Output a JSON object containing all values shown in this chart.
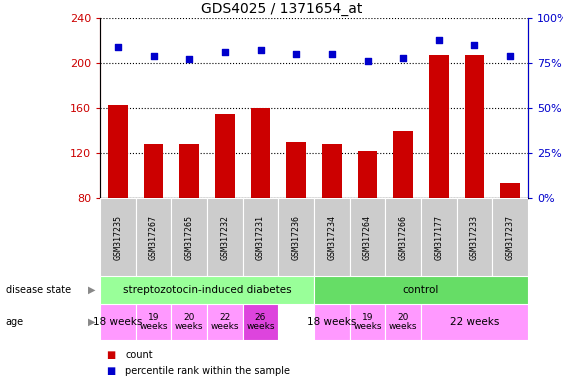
{
  "title": "GDS4025 / 1371654_at",
  "samples": [
    "GSM317235",
    "GSM317267",
    "GSM317265",
    "GSM317232",
    "GSM317231",
    "GSM317236",
    "GSM317234",
    "GSM317264",
    "GSM317266",
    "GSM317177",
    "GSM317233",
    "GSM317237"
  ],
  "bar_values": [
    163,
    128,
    128,
    155,
    160,
    130,
    128,
    122,
    140,
    207,
    207,
    93
  ],
  "percentile_values": [
    84,
    79,
    77,
    81,
    82,
    80,
    80,
    76,
    78,
    88,
    85,
    79
  ],
  "ylim_left": [
    80,
    240
  ],
  "ylim_right": [
    0,
    100
  ],
  "yticks_left": [
    80,
    120,
    160,
    200,
    240
  ],
  "yticks_right": [
    0,
    25,
    50,
    75,
    100
  ],
  "bar_color": "#cc0000",
  "dot_color": "#0000cc",
  "disease_state_groups": [
    {
      "label": "streptozotocin-induced diabetes",
      "start": 0,
      "end": 6,
      "color": "#99ff99"
    },
    {
      "label": "control",
      "start": 6,
      "end": 12,
      "color": "#66dd66"
    }
  ],
  "age_groups": [
    {
      "label": "18 weeks",
      "start": 0,
      "end": 1,
      "color": "#ff99ff",
      "fontsize": 7.5
    },
    {
      "label": "19\nweeks",
      "start": 1,
      "end": 2,
      "color": "#ff99ff",
      "fontsize": 6.5
    },
    {
      "label": "20\nweeks",
      "start": 2,
      "end": 3,
      "color": "#ff99ff",
      "fontsize": 6.5
    },
    {
      "label": "22\nweeks",
      "start": 3,
      "end": 4,
      "color": "#ff99ff",
      "fontsize": 6.5
    },
    {
      "label": "26\nweeks",
      "start": 4,
      "end": 5,
      "color": "#dd44dd",
      "fontsize": 6.5
    },
    {
      "label": "18 weeks",
      "start": 6,
      "end": 7,
      "color": "#ff99ff",
      "fontsize": 7.5
    },
    {
      "label": "19\nweeks",
      "start": 7,
      "end": 8,
      "color": "#ff99ff",
      "fontsize": 6.5
    },
    {
      "label": "20\nweeks",
      "start": 8,
      "end": 9,
      "color": "#ff99ff",
      "fontsize": 6.5
    },
    {
      "label": "22 weeks",
      "start": 9,
      "end": 12,
      "color": "#ff99ff",
      "fontsize": 7.5
    }
  ],
  "sample_box_color": "#cccccc",
  "background_color": "#ffffff",
  "tick_label_color_left": "#cc0000",
  "tick_label_color_right": "#0000cc",
  "left_label_color": "#444444"
}
